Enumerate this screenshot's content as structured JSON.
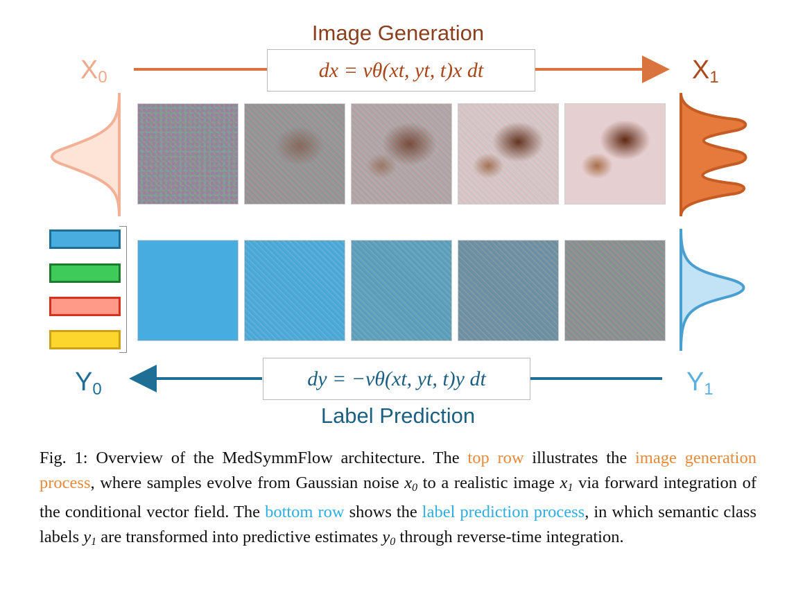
{
  "diagram": {
    "top_title": "Image Generation",
    "bottom_title": "Label Prediction",
    "x0": {
      "main": "X",
      "sub": "0"
    },
    "x1": {
      "main": "X",
      "sub": "1"
    },
    "y0": {
      "main": "Y",
      "sub": "0"
    },
    "y1": {
      "main": "Y",
      "sub": "1"
    },
    "eq_top": "dx = vθ(xt, yt, t)x dt",
    "eq_bottom": "dy = −vθ(xt, yt, t)y dt",
    "colors": {
      "orange_dark": "#a94a1c",
      "orange_light": "#f7d3c2",
      "orange_fill": "#e67a3d",
      "blue_dark": "#1f6e96",
      "blue_light": "#c2e3f5",
      "blue_fill": "#49ade0",
      "legend": [
        "#49ade0",
        "#3ecb5a",
        "#ff9a88",
        "#fcd52d"
      ]
    }
  },
  "caption": {
    "fig_label": "Fig. 1:",
    "s1": " Overview of the MedSymmFlow architecture. The ",
    "top_row": "top row",
    "s2": " illustrates the ",
    "image_gen": "image generation process",
    "s3": ", where samples evolve from Gaussian noise ",
    "v_x0": "x",
    "v_x0_sub": "0",
    "s4": " to a realistic image ",
    "v_x1": "x",
    "v_x1_sub": "1",
    "s5": " via forward integration of the conditional vector field. The ",
    "bottom_row": "bottom row",
    "s6": " shows the ",
    "label_pred": "label prediction process",
    "s7": ", in which semantic class labels ",
    "v_y1": "y",
    "v_y1_sub": "1",
    "s8": " are transformed into predictive estimates ",
    "v_y0": "y",
    "v_y0_sub": "0",
    "s9": " through reverse-time integration."
  }
}
